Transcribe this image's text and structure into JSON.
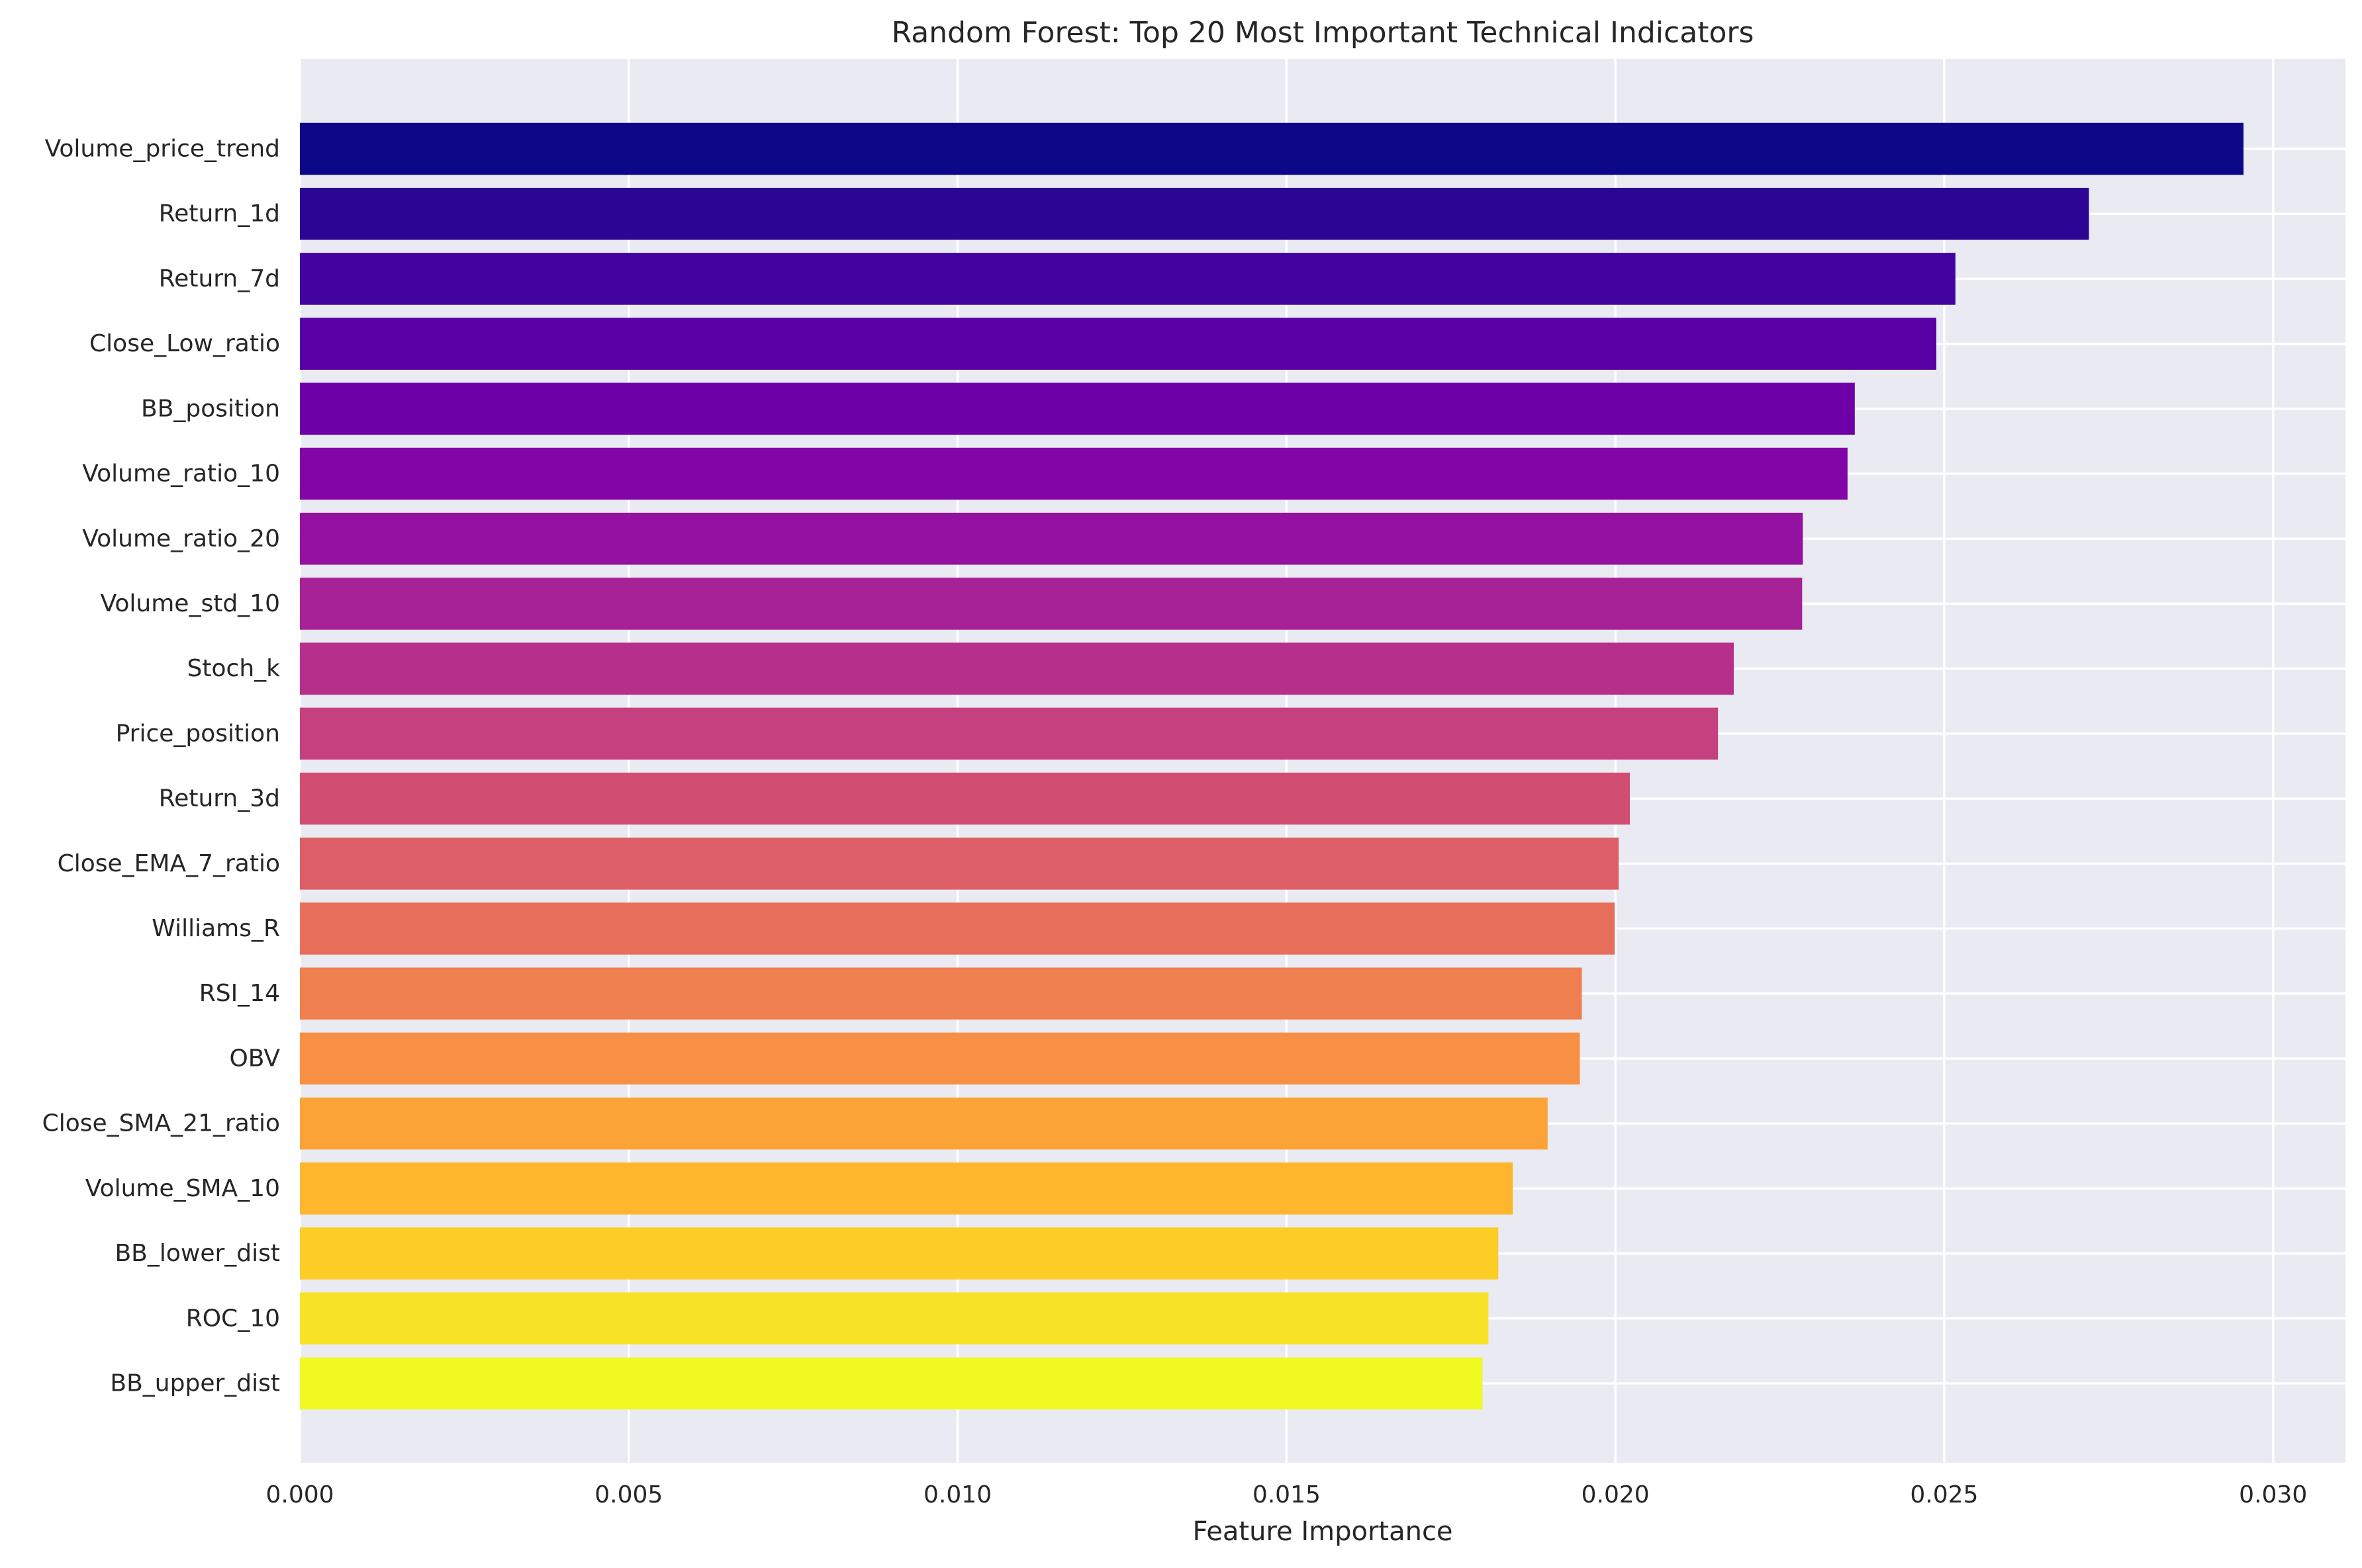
{
  "chart_data": {
    "type": "bar",
    "orientation": "horizontal",
    "title": "Random Forest: Top 20 Most Important Technical Indicators",
    "xlabel": "Feature Importance",
    "ylabel": "",
    "xlim": [
      0,
      0.0311
    ],
    "x_ticks": [
      "0.000",
      "0.005",
      "0.010",
      "0.015",
      "0.020",
      "0.025",
      "0.030"
    ],
    "x_tick_values": [
      0,
      0.005,
      0.01,
      0.015,
      0.02,
      0.025,
      0.03
    ],
    "grid": true,
    "legend": "none",
    "categories": [
      "Volume_price_trend",
      "Return_1d",
      "Return_7d",
      "Close_Low_ratio",
      "BB_position",
      "Volume_ratio_10",
      "Volume_ratio_20",
      "Volume_std_10",
      "Stoch_k",
      "Price_position",
      "Return_3d",
      "Close_EMA_7_ratio",
      "Williams_R",
      "RSI_14",
      "OBV",
      "Close_SMA_21_ratio",
      "Volume_SMA_10",
      "BB_lower_dist",
      "ROC_10",
      "BB_upper_dist"
    ],
    "values": [
      0.02955,
      0.0272,
      0.02517,
      0.02488,
      0.02364,
      0.02353,
      0.02285,
      0.02284,
      0.0218,
      0.02156,
      0.02022,
      0.02005,
      0.01999,
      0.01949,
      0.01946,
      0.01897,
      0.01844,
      0.01822,
      0.01807,
      0.01798
    ],
    "colormap": "plasma",
    "colors": [
      "#0d0887",
      "#2c0594",
      "#43039e",
      "#5901a5",
      "#6e00a8",
      "#8305a7",
      "#9511a1",
      "#a72197",
      "#b6308b",
      "#c5407e",
      "#d14e72",
      "#dd5e66",
      "#e76e5b",
      "#f07f4f",
      "#f79044",
      "#fca338",
      "#feb72d",
      "#fccd25",
      "#f7e225",
      "#f0f921"
    ]
  }
}
